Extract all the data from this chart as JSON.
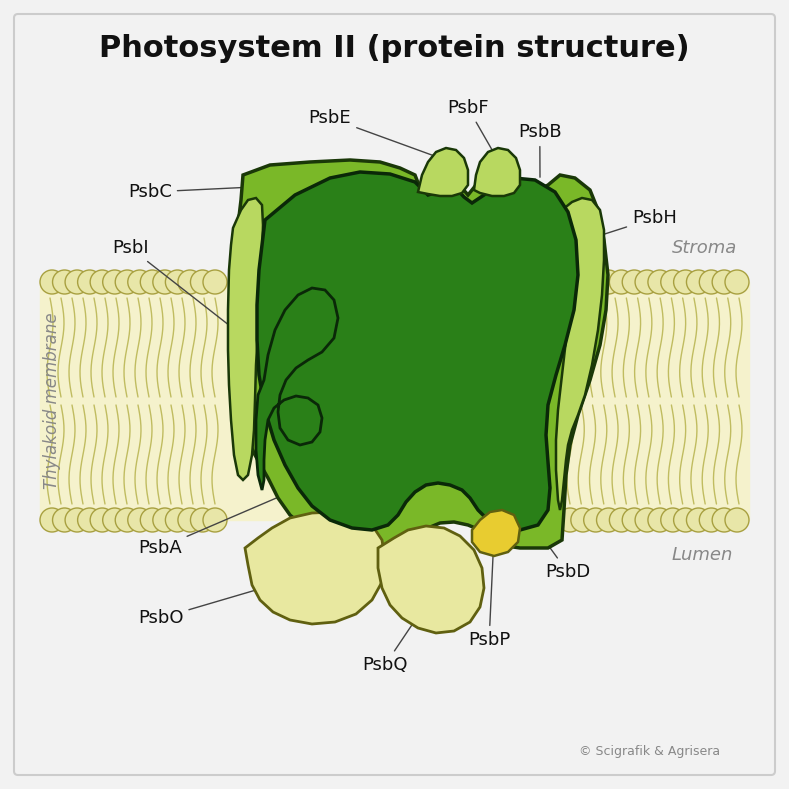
{
  "title": "Photosystem II (protein structure)",
  "title_fontsize": 22,
  "bg_color": "#f2f2f2",
  "border_color": "#cccccc",
  "mem_bg_color": "#f5f2cc",
  "mem_stripe_color": "#d0cc88",
  "lipid_head_color": "#eae8b0",
  "lipid_head_edge": "#aaa848",
  "outer_green": "#7ab828",
  "outer_green_edge": "#1a3808",
  "mid_green": "#4a9820",
  "mid_green_edge": "#1a3808",
  "inner_green": "#2a8018",
  "inner_green_edge": "#0a2808",
  "light_green": "#b8d860",
  "light_green_edge": "#1a3808",
  "pale_yellow": "#e8e8a0",
  "pale_yellow_edge": "#606010",
  "bright_yellow": "#e8cc30",
  "bright_yellow_edge": "#606010",
  "label_color": "#111111",
  "side_label_color": "#888888",
  "line_color": "#444444",
  "stroma": "Stroma",
  "lumen": "Lumen",
  "membrane": "Thylakoid membrane",
  "copyright": "© Scigrafik & Agrisera"
}
